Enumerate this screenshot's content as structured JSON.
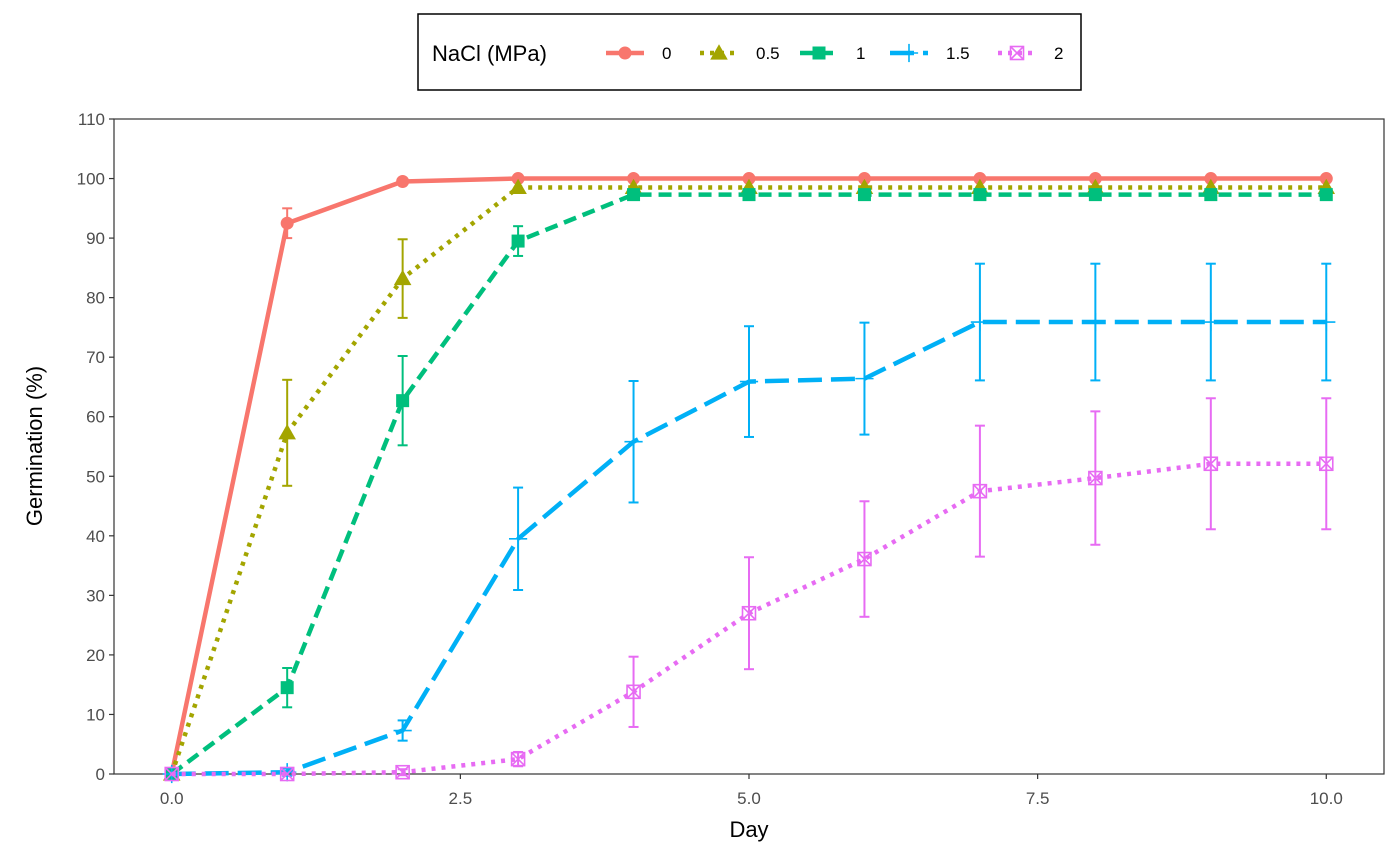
{
  "chart_data": {
    "type": "line",
    "xlabel": "Day",
    "ylabel": "Germination (%)",
    "xlim": [
      -0.5,
      10.5
    ],
    "ylim": [
      0,
      110
    ],
    "x_ticks": [
      0.0,
      2.5,
      5.0,
      7.5,
      10.0
    ],
    "x_tick_labels": [
      "0.0",
      "2.5",
      "5.0",
      "7.5",
      "10.0"
    ],
    "y_ticks": [
      0,
      10,
      20,
      30,
      40,
      50,
      60,
      70,
      80,
      90,
      100,
      110
    ],
    "y_tick_labels": [
      "0",
      "10",
      "20",
      "30",
      "40",
      "50",
      "60",
      "70",
      "80",
      "90",
      "100",
      "110"
    ],
    "grid": false,
    "legend": {
      "title": "NaCl (MPa)",
      "position": "top"
    },
    "x": [
      0,
      1,
      2,
      3,
      4,
      5,
      6,
      7,
      8,
      9,
      10
    ],
    "series": [
      {
        "name": "0",
        "color": "#F8766D",
        "linestyle": "solid",
        "marker": "circle",
        "values": [
          0,
          92.5,
          99.5,
          100,
          100,
          100,
          100,
          100,
          100,
          100,
          100
        ],
        "error": [
          0,
          2.5,
          0,
          0,
          0,
          0,
          0,
          0,
          0,
          0,
          0
        ]
      },
      {
        "name": "0.5",
        "color": "#A3A500",
        "linestyle": "dotted",
        "marker": "triangle",
        "values": [
          0,
          57.3,
          83.2,
          98.5,
          98.5,
          98.5,
          98.5,
          98.5,
          98.5,
          98.5,
          98.5
        ],
        "error": [
          0,
          8.9,
          6.6,
          0,
          0,
          0,
          0,
          0,
          0,
          0,
          0
        ]
      },
      {
        "name": "1",
        "color": "#00BF7D",
        "linestyle": "dashed",
        "marker": "square",
        "values": [
          0,
          14.5,
          62.7,
          89.5,
          97.3,
          97.3,
          97.3,
          97.3,
          97.3,
          97.3,
          97.3
        ],
        "error": [
          0,
          3.3,
          7.5,
          2.5,
          0,
          0,
          0,
          0,
          0,
          0,
          0
        ]
      },
      {
        "name": "1.5",
        "color": "#00B0F6",
        "linestyle": "longdash",
        "marker": "plus",
        "values": [
          0,
          0.3,
          7.3,
          39.5,
          55.8,
          65.9,
          66.4,
          75.9,
          75.9,
          75.9,
          75.9
        ],
        "error": [
          0,
          0.6,
          1.7,
          8.6,
          10.2,
          9.3,
          9.4,
          9.8,
          9.8,
          9.8,
          9.8
        ]
      },
      {
        "name": "2",
        "color": "#E76BF3",
        "linestyle": "dotted",
        "marker": "square-x",
        "values": [
          0,
          0,
          0.3,
          2.5,
          13.8,
          27.0,
          36.1,
          47.5,
          49.7,
          52.1,
          52.1
        ],
        "error": [
          0,
          0,
          0.5,
          1.2,
          5.9,
          9.4,
          9.7,
          11.0,
          11.2,
          11.0,
          11.0
        ]
      }
    ]
  }
}
